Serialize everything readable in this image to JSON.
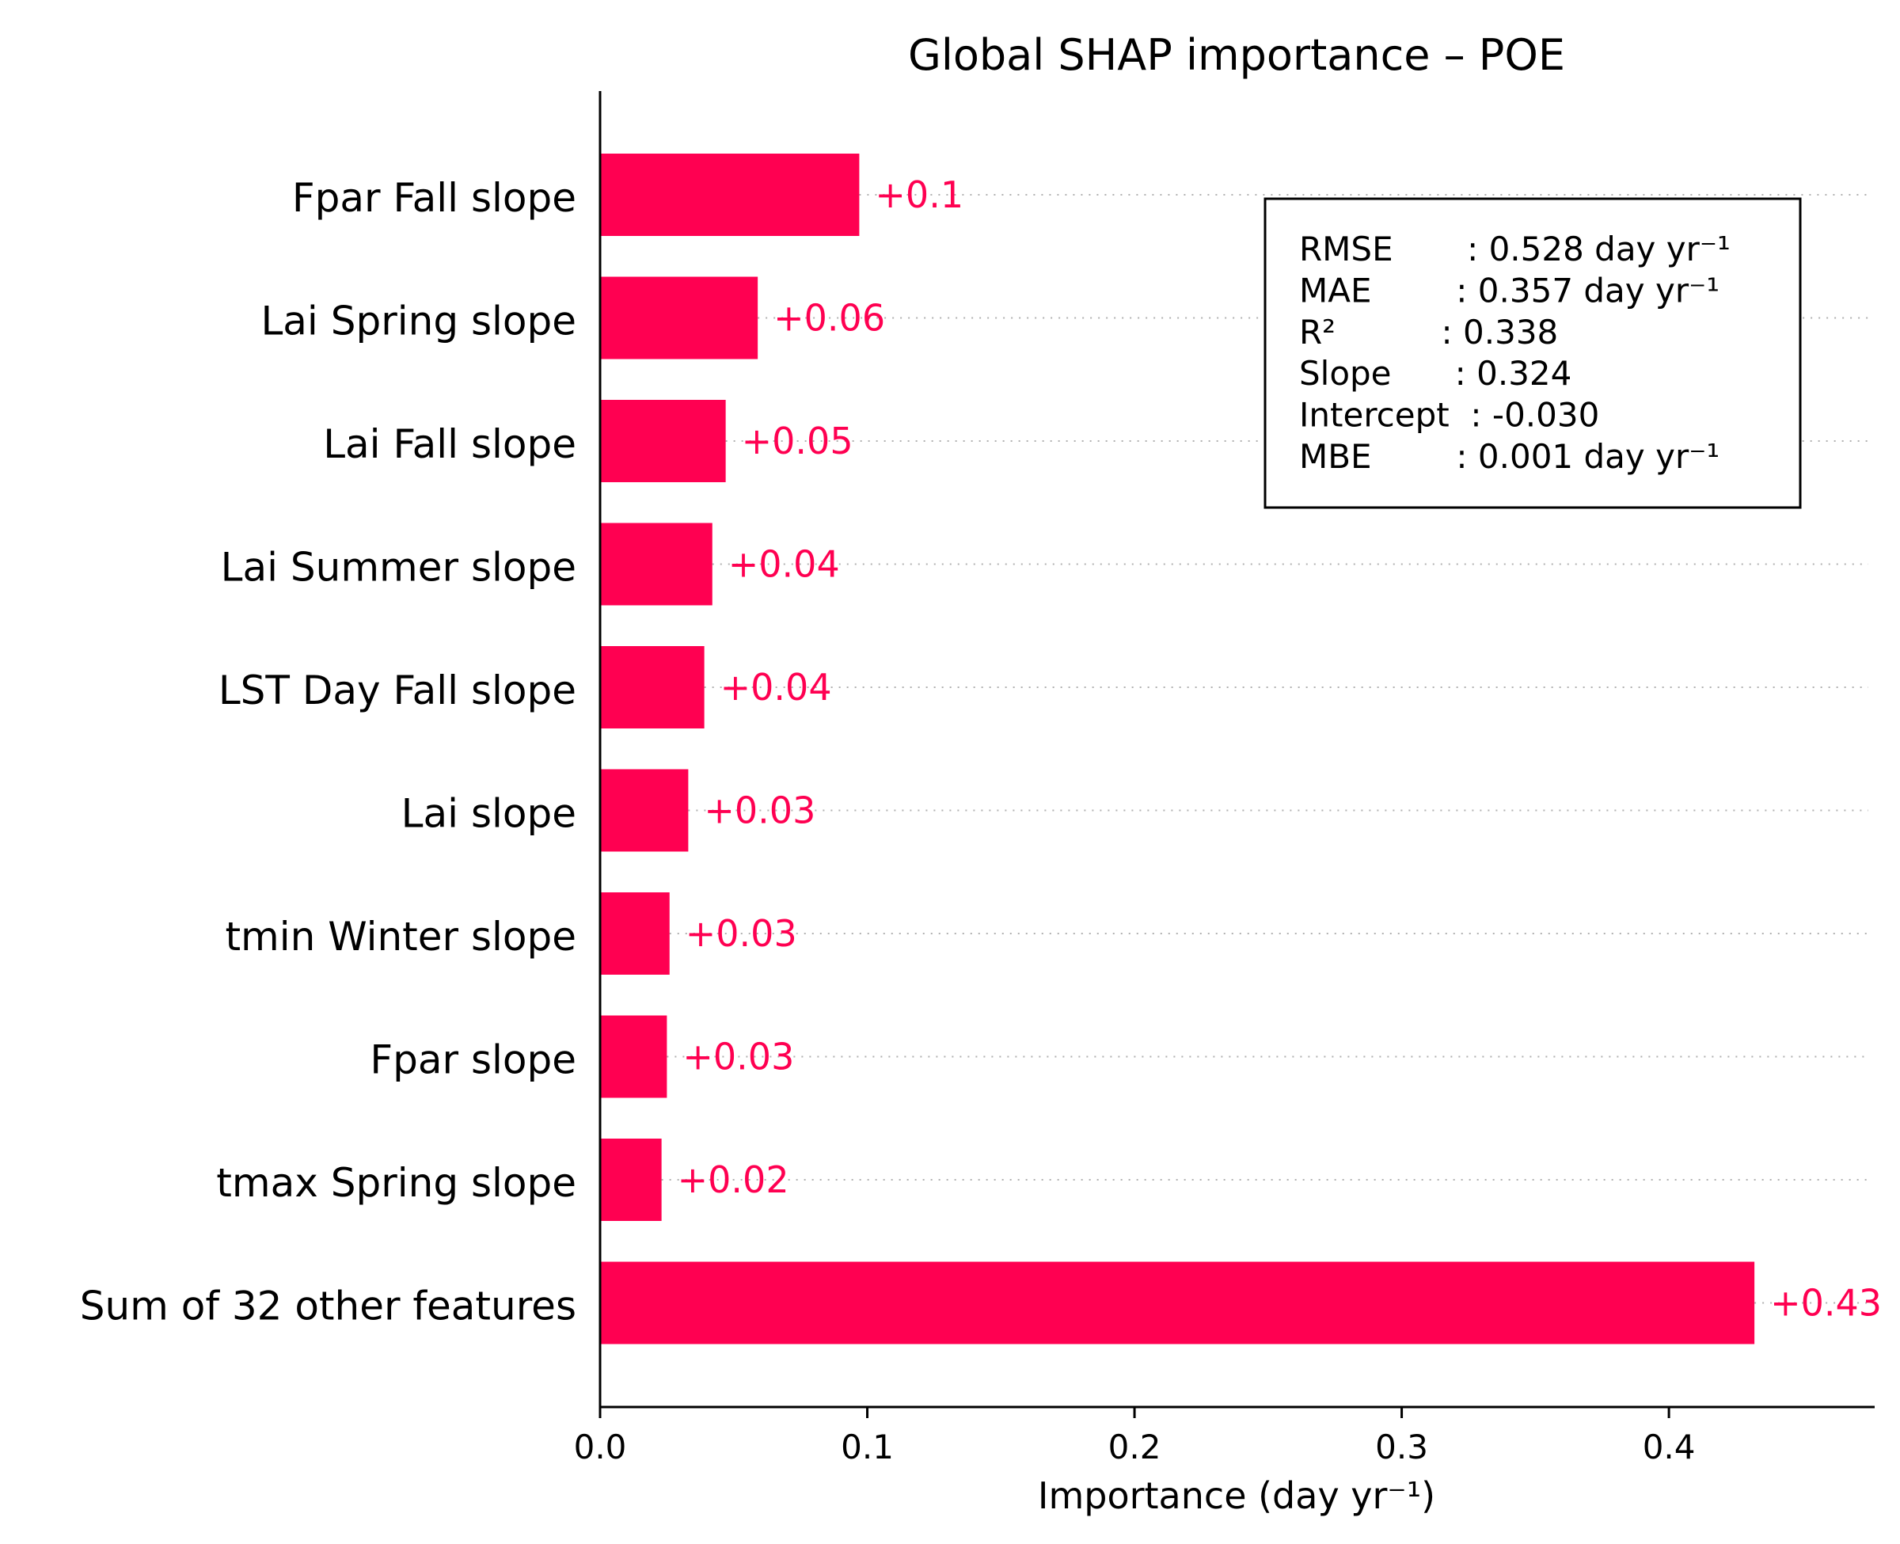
{
  "chart_data": {
    "type": "bar",
    "orientation": "horizontal",
    "title": "Global SHAP importance – POE",
    "xlabel": "Importance (day yr⁻¹)",
    "ylabel": "",
    "xlim": [
      0,
      0.477
    ],
    "xticks": [
      0.0,
      0.1,
      0.2,
      0.3,
      0.4
    ],
    "xtick_labels": [
      "0.0",
      "0.1",
      "0.2",
      "0.3",
      "0.4"
    ],
    "categories": [
      "Fpar Fall slope",
      "Lai Spring slope",
      "Lai Fall slope",
      "Lai Summer slope",
      "LST Day Fall slope",
      "Lai slope",
      "tmin Winter slope",
      "Fpar slope",
      "tmax Spring slope",
      "Sum of 32 other features"
    ],
    "values": [
      0.097,
      0.059,
      0.047,
      0.042,
      0.039,
      0.033,
      0.026,
      0.025,
      0.023,
      0.432
    ],
    "value_labels": [
      "+0.1",
      "+0.06",
      "+0.05",
      "+0.04",
      "+0.04",
      "+0.03",
      "+0.03",
      "+0.03",
      "+0.02",
      "+0.43"
    ],
    "bar_color": "#ff0051",
    "grid": "dotted horizontal guide per bar",
    "stats_box": {
      "placement": "top-right",
      "lines": [
        "RMSE       : 0.528 day yr⁻¹",
        "MAE        : 0.357 day yr⁻¹",
        "R²          : 0.338",
        "Slope      : 0.324",
        "Intercept  : -0.030",
        "MBE        : 0.001 day yr⁻¹"
      ]
    }
  }
}
